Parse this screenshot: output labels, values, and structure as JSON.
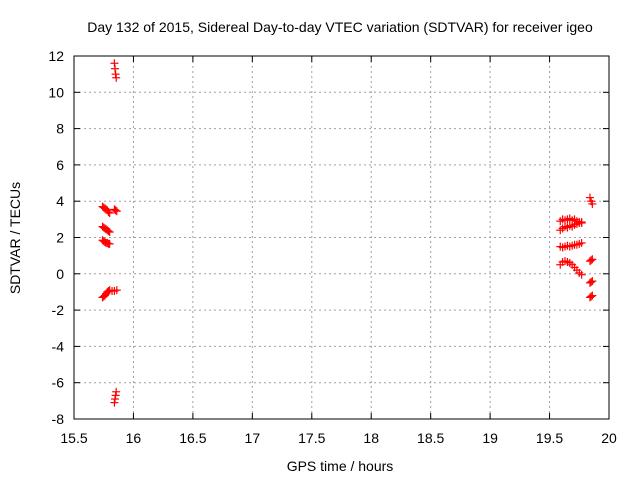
{
  "chart_data": {
    "type": "scatter",
    "title": "Day 132 of 2015, Sidereal Day-to-day VTEC variation (SDTVAR) for receiver igeo",
    "xlabel": "GPS time / hours",
    "ylabel": "SDTVAR / TECUs",
    "xlim": [
      15.5,
      20
    ],
    "ylim": [
      -8,
      12
    ],
    "xticks": [
      "15.5",
      "16",
      "16.5",
      "17",
      "17.5",
      "18",
      "18.5",
      "19",
      "19.5",
      "20"
    ],
    "yticks": [
      "-8",
      "-6",
      "-4",
      "-2",
      "0",
      "2",
      "4",
      "6",
      "8",
      "10",
      "12"
    ],
    "grid": true,
    "marker": "plus",
    "color": "#ff0000",
    "series": [
      {
        "points": [
          [
            15.84,
            11.6
          ],
          [
            15.845,
            11.3
          ],
          [
            15.85,
            11.0
          ],
          [
            15.855,
            10.8
          ],
          [
            15.84,
            -7.1
          ],
          [
            15.845,
            -6.9
          ],
          [
            15.85,
            -6.7
          ],
          [
            15.855,
            -6.5
          ],
          [
            15.74,
            3.7
          ],
          [
            15.75,
            3.65
          ],
          [
            15.76,
            3.6
          ],
          [
            15.77,
            3.55
          ],
          [
            15.78,
            3.5
          ],
          [
            15.79,
            3.4
          ],
          [
            15.8,
            3.35
          ],
          [
            15.84,
            3.55
          ],
          [
            15.85,
            3.5
          ],
          [
            15.86,
            3.45
          ],
          [
            15.74,
            2.6
          ],
          [
            15.75,
            2.55
          ],
          [
            15.76,
            2.5
          ],
          [
            15.77,
            2.45
          ],
          [
            15.78,
            2.4
          ],
          [
            15.79,
            2.35
          ],
          [
            15.8,
            2.3
          ],
          [
            15.74,
            1.85
          ],
          [
            15.75,
            1.8
          ],
          [
            15.76,
            1.75
          ],
          [
            15.77,
            1.7
          ],
          [
            15.78,
            1.7
          ],
          [
            15.79,
            1.65
          ],
          [
            15.8,
            1.65
          ],
          [
            15.74,
            -1.3
          ],
          [
            15.75,
            -1.25
          ],
          [
            15.76,
            -1.2
          ],
          [
            15.77,
            -1.1
          ],
          [
            15.78,
            -1.0
          ],
          [
            15.79,
            -0.95
          ],
          [
            15.8,
            -0.9
          ],
          [
            15.82,
            -0.95
          ],
          [
            15.84,
            -0.95
          ],
          [
            15.86,
            -0.9
          ],
          [
            19.59,
            2.9
          ],
          [
            19.61,
            3.0
          ],
          [
            19.63,
            2.95
          ],
          [
            19.65,
            3.0
          ],
          [
            19.67,
            3.05
          ],
          [
            19.69,
            2.95
          ],
          [
            19.71,
            3.0
          ],
          [
            19.73,
            2.9
          ],
          [
            19.75,
            2.85
          ],
          [
            19.77,
            2.8
          ],
          [
            19.59,
            2.4
          ],
          [
            19.61,
            2.5
          ],
          [
            19.63,
            2.6
          ],
          [
            19.65,
            2.55
          ],
          [
            19.67,
            2.65
          ],
          [
            19.69,
            2.6
          ],
          [
            19.71,
            2.7
          ],
          [
            19.73,
            2.75
          ],
          [
            19.75,
            2.8
          ],
          [
            19.77,
            2.85
          ],
          [
            19.59,
            1.5
          ],
          [
            19.61,
            1.45
          ],
          [
            19.63,
            1.5
          ],
          [
            19.65,
            1.55
          ],
          [
            19.67,
            1.5
          ],
          [
            19.69,
            1.55
          ],
          [
            19.71,
            1.6
          ],
          [
            19.73,
            1.6
          ],
          [
            19.75,
            1.65
          ],
          [
            19.77,
            1.7
          ],
          [
            19.59,
            0.5
          ],
          [
            19.61,
            0.65
          ],
          [
            19.63,
            0.7
          ],
          [
            19.65,
            0.65
          ],
          [
            19.67,
            0.6
          ],
          [
            19.69,
            0.5
          ],
          [
            19.71,
            0.35
          ],
          [
            19.73,
            0.2
          ],
          [
            19.75,
            0.05
          ],
          [
            19.77,
            -0.05
          ],
          [
            19.84,
            4.2
          ],
          [
            19.85,
            4.0
          ],
          [
            19.86,
            3.85
          ],
          [
            19.84,
            0.7
          ],
          [
            19.85,
            0.75
          ],
          [
            19.86,
            0.8
          ],
          [
            19.84,
            -0.5
          ],
          [
            19.85,
            -0.45
          ],
          [
            19.86,
            -0.4
          ],
          [
            19.84,
            -1.3
          ],
          [
            19.85,
            -1.25
          ],
          [
            19.86,
            -1.2
          ]
        ]
      }
    ]
  }
}
